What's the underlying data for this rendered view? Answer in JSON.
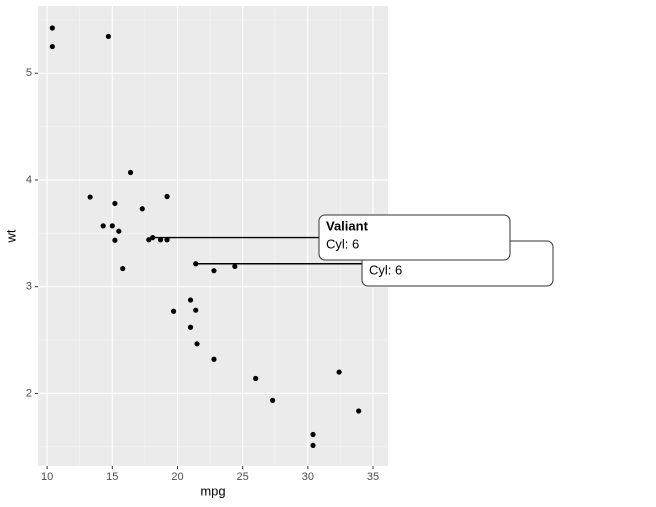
{
  "chart_data": {
    "type": "scatter",
    "x_label": "mpg",
    "y_label": "wt",
    "x": [
      21.0,
      21.0,
      22.8,
      21.4,
      18.7,
      18.1,
      14.3,
      24.4,
      22.8,
      19.2,
      17.8,
      16.4,
      17.3,
      15.2,
      10.4,
      10.4,
      14.7,
      32.4,
      30.4,
      33.9,
      21.5,
      15.5,
      15.2,
      13.3,
      19.2,
      27.3,
      26.0,
      30.4,
      15.8,
      19.7,
      15.0,
      21.4
    ],
    "values": [
      2.62,
      2.875,
      2.32,
      3.215,
      3.44,
      3.46,
      3.57,
      3.19,
      3.15,
      3.44,
      3.44,
      4.07,
      3.73,
      3.78,
      5.25,
      5.424,
      5.345,
      2.2,
      1.615,
      1.835,
      2.465,
      3.52,
      3.435,
      3.84,
      3.845,
      1.935,
      2.14,
      1.513,
      3.17,
      2.77,
      3.57,
      2.78
    ],
    "color": "#000000",
    "xlim": [
      9.3,
      36.15
    ],
    "ylim": [
      1.32,
      5.63
    ],
    "xticks": [
      10,
      15,
      20,
      25,
      30,
      35
    ],
    "yticks": [
      2,
      3,
      4,
      5
    ],
    "grid": true,
    "tooltips": [
      {
        "x": 21.4,
        "y": 3.215,
        "text": "Cyl: 6"
      },
      {
        "x": 18.1,
        "y": 3.46,
        "title": "Valiant",
        "text": "Cyl: 6"
      }
    ]
  }
}
